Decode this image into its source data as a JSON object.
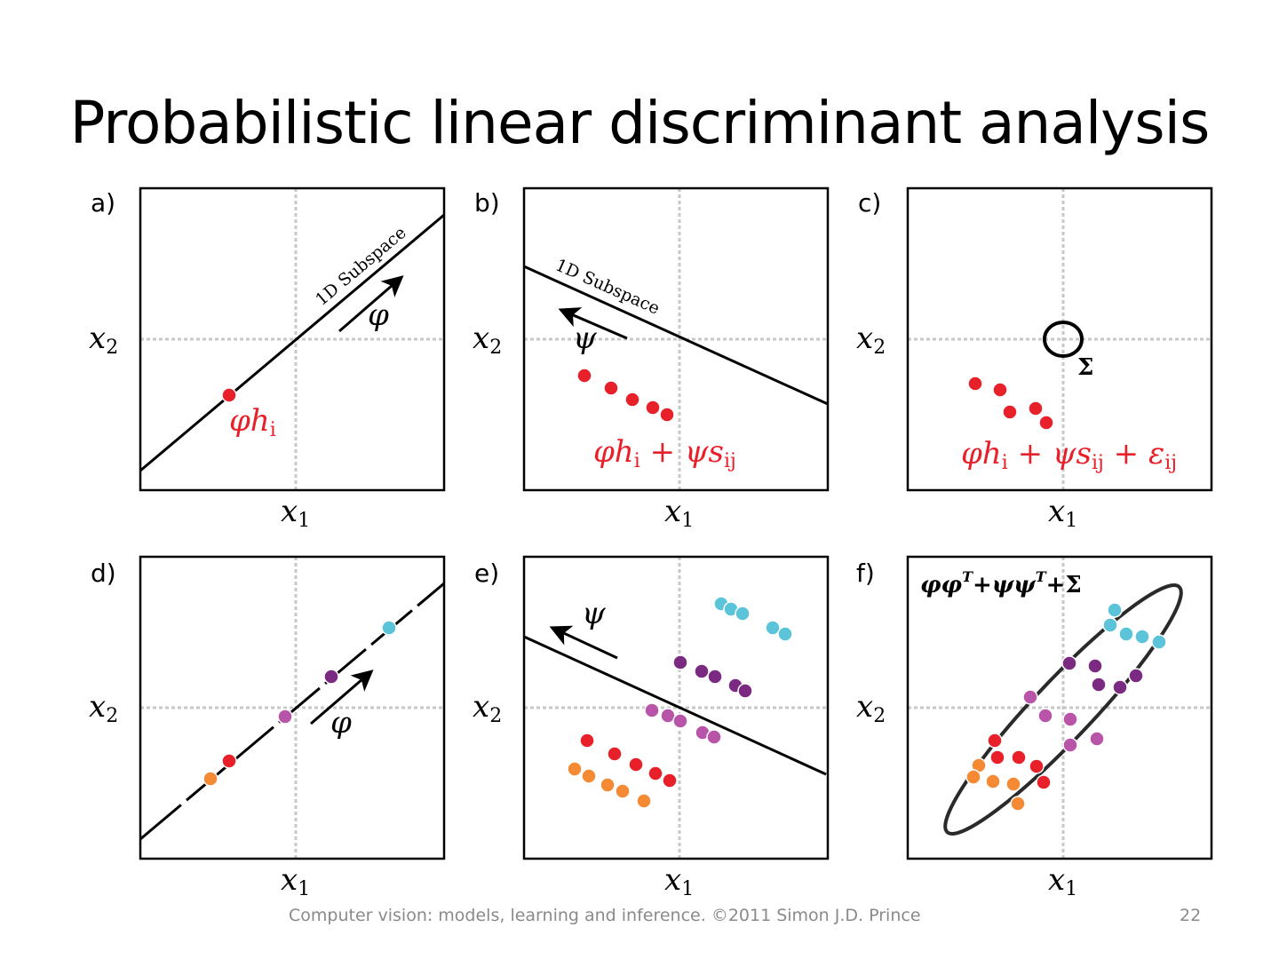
{
  "slide": {
    "title": "Probabilistic linear discriminant analysis",
    "footer": "Computer vision: models, learning and inference.  ©2011 Simon J.D. Prince",
    "page_number": "22"
  },
  "panels": [
    {
      "label": "a)",
      "subspace_label": "1D Subspace",
      "arrow_symbol": "φ",
      "formula": "φh",
      "formula_sub": "i"
    },
    {
      "label": "b)",
      "subspace_label": "1D Subspace",
      "arrow_symbol": "ψ",
      "formula": "φh",
      "formula_sub": "i",
      "formula_rest": " + ψs",
      "formula_sub2": "ij"
    },
    {
      "label": "c)",
      "sigma": "Σ",
      "formula": "φh",
      "formula_sub": "i",
      "formula_rest": " + ψs",
      "formula_sub2": "ij",
      "formula_rest2": " + ε",
      "formula_sub3": "ij"
    },
    {
      "label": "d)",
      "arrow_symbol": "φ"
    },
    {
      "label": "e)",
      "arrow_symbol": "ψ"
    },
    {
      "label": "f)",
      "formula": "φφ",
      "sup1": "T",
      "mid": "+ψψ",
      "sup2": "T",
      "end": "+Σ"
    }
  ],
  "axes": {
    "x": "x",
    "x_sub": "1",
    "y": "x",
    "y_sub": "2"
  },
  "colors": {
    "red": "#e8202a",
    "orange": "#f58a35",
    "purple": "#7b2a82",
    "pink": "#b855a8",
    "cyan": "#5bc4d8"
  }
}
